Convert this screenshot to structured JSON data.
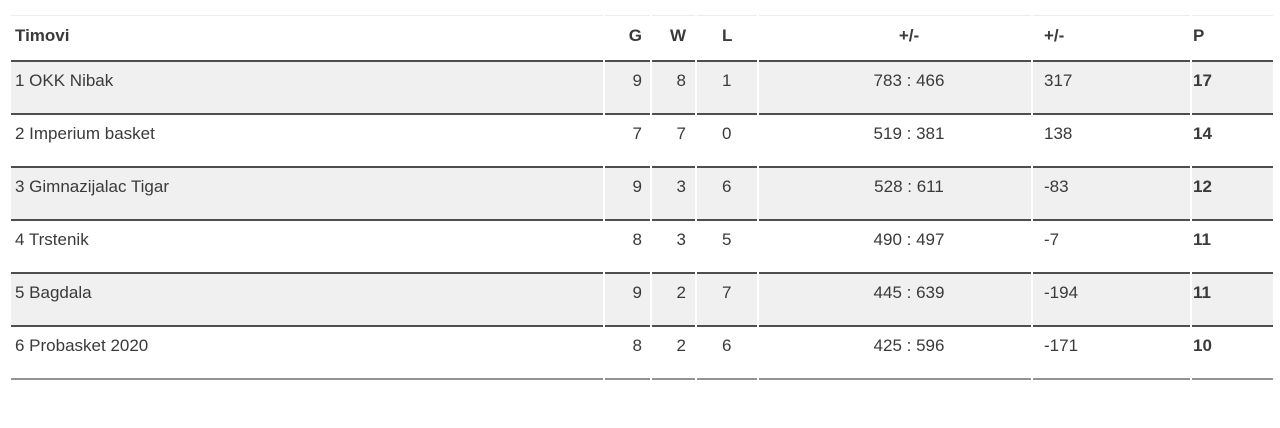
{
  "page": {
    "background": "#ffffff"
  },
  "table": {
    "columns": [
      {
        "key": "team",
        "label": "Timovi"
      },
      {
        "key": "g",
        "label": "G"
      },
      {
        "key": "w",
        "label": "W"
      },
      {
        "key": "l",
        "label": "L"
      },
      {
        "key": "score",
        "label": "+/-"
      },
      {
        "key": "diff",
        "label": "+/-"
      },
      {
        "key": "p",
        "label": "P"
      }
    ],
    "rows": [
      {
        "rank": "1",
        "name": "OKK Nibak",
        "g": "9",
        "w": "8",
        "l": "1",
        "score": "783 : 466",
        "diff": "317",
        "p": "17"
      },
      {
        "rank": "2",
        "name": "Imperium basket",
        "g": "7",
        "w": "7",
        "l": "0",
        "score": "519 : 381",
        "diff": "138",
        "p": "14"
      },
      {
        "rank": "3",
        "name": "Gimnazijalac Tigar",
        "g": "9",
        "w": "3",
        "l": "6",
        "score": "528 : 611",
        "diff": "-83",
        "p": "12"
      },
      {
        "rank": "4",
        "name": "Trstenik",
        "g": "8",
        "w": "3",
        "l": "5",
        "score": "490 : 497",
        "diff": "-7",
        "p": "11"
      },
      {
        "rank": "5",
        "name": "Bagdala",
        "g": "9",
        "w": "2",
        "l": "7",
        "score": "445 : 639",
        "diff": "-194",
        "p": "11"
      },
      {
        "rank": "6",
        "name": "Probasket 2020",
        "g": "8",
        "w": "2",
        "l": "6",
        "score": "425 : 596",
        "diff": "-171",
        "p": "10"
      }
    ],
    "colors": {
      "row_stripe": "#f0f0f0",
      "separator": "#4e4e4e",
      "bottom_border": "#939393",
      "top_border": "#ececec",
      "text": "#3a3a3a"
    }
  }
}
